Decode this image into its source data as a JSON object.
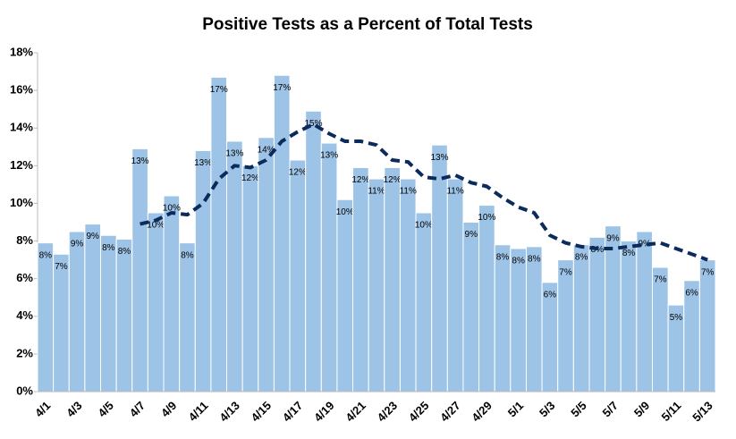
{
  "chart_data": {
    "type": "bar",
    "title": "Positive Tests as a Percent of Total Tests",
    "categories": [
      "4/1",
      null,
      "4/3",
      null,
      "4/5",
      null,
      "4/7",
      null,
      "4/9",
      null,
      "4/11",
      null,
      "4/13",
      null,
      "4/15",
      null,
      "4/17",
      null,
      "4/19",
      null,
      "4/21",
      null,
      "4/23",
      null,
      "4/25",
      null,
      "4/27",
      null,
      "4/29",
      null,
      "5/1",
      null,
      "5/3",
      null,
      "5/5",
      null,
      "5/7",
      null,
      "5/9",
      null,
      "5/11",
      null,
      "5/13"
    ],
    "series": [
      {
        "type": "bar",
        "color": "#9dc3e6",
        "values": [
          7.9,
          7.3,
          8.5,
          8.9,
          8.3,
          8.1,
          12.9,
          9.5,
          10.4,
          7.9,
          12.8,
          16.7,
          13.3,
          12.0,
          13.5,
          16.8,
          12.3,
          14.9,
          13.2,
          10.2,
          11.9,
          11.3,
          11.9,
          11.3,
          9.5,
          13.1,
          11.3,
          9.0,
          9.9,
          7.8,
          7.6,
          7.7,
          5.8,
          7.0,
          7.8,
          8.2,
          8.8,
          8.0,
          8.5,
          6.6,
          4.6,
          5.9,
          7.0
        ],
        "value_labels": [
          "8%",
          "7%",
          "9%",
          "9%",
          "8%",
          "8%",
          "13%",
          "10%",
          "10%",
          "8%",
          "13%",
          "17%",
          "13%",
          "12%",
          "14%",
          "17%",
          "12%",
          "15%",
          "13%",
          "10%",
          "12%",
          "11%",
          "12%",
          "11%",
          "10%",
          "13%",
          "11%",
          "9%",
          "10%",
          "8%",
          "8%",
          "8%",
          "6%",
          "7%",
          "8%",
          "8%",
          "9%",
          "8%",
          "9%",
          "7%",
          "5%",
          "6%",
          "7%"
        ]
      },
      {
        "type": "line",
        "color": "#0b2b5c",
        "values": [
          null,
          null,
          null,
          null,
          null,
          null,
          8.9,
          9.1,
          9.5,
          9.4,
          10.0,
          11.3,
          12.0,
          11.9,
          12.3,
          13.3,
          13.8,
          14.2,
          13.7,
          13.3,
          13.3,
          13.1,
          12.3,
          12.2,
          11.4,
          11.3,
          11.5,
          11.1,
          10.9,
          10.3,
          9.8,
          9.5,
          8.3,
          7.9,
          7.7,
          7.6,
          7.6,
          7.7,
          7.8,
          7.9,
          7.6,
          7.3,
          7.0
        ]
      }
    ],
    "ylim": [
      0,
      18
    ],
    "yticks": [
      {
        "value": 0,
        "label": "0%"
      },
      {
        "value": 2,
        "label": "2%"
      },
      {
        "value": 4,
        "label": "4%"
      },
      {
        "value": 6,
        "label": "6%"
      },
      {
        "value": 8,
        "label": "8%"
      },
      {
        "value": 10,
        "label": "10%"
      },
      {
        "value": 12,
        "label": "12%"
      },
      {
        "value": 14,
        "label": "14%"
      },
      {
        "value": 16,
        "label": "16%"
      },
      {
        "value": 18,
        "label": "18%"
      }
    ]
  }
}
